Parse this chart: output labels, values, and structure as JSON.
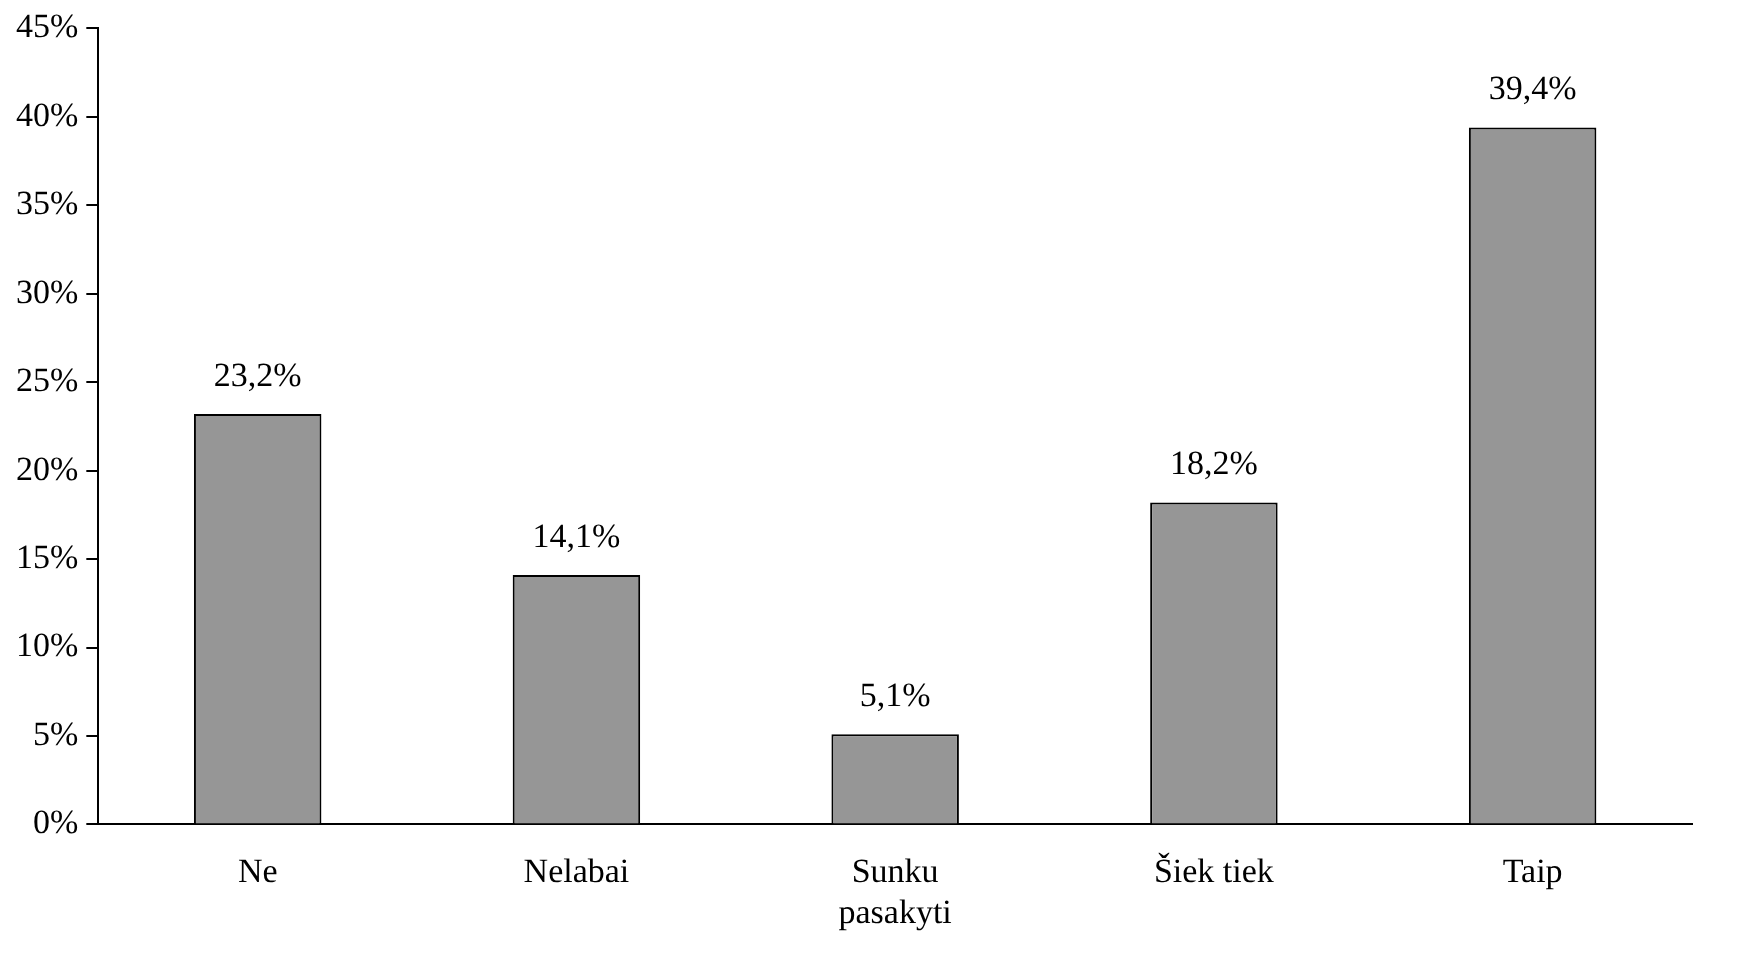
{
  "chart_data": {
    "type": "bar",
    "categories": [
      "Ne",
      "Nelabai",
      "Sunku pasakyti",
      "Šiek tiek",
      "Taip"
    ],
    "values": [
      23.2,
      14.1,
      5.1,
      18.2,
      39.4
    ],
    "value_labels": [
      "23,2%",
      "14,1%",
      "5,1%",
      "18,2%",
      "39,4%"
    ],
    "color": "#969696",
    "ylim": [
      0,
      45
    ],
    "yticks": [
      {
        "value": 0,
        "label": "0%"
      },
      {
        "value": 5,
        "label": "5%"
      },
      {
        "value": 10,
        "label": "10%"
      },
      {
        "value": 15,
        "label": "15%"
      },
      {
        "value": 20,
        "label": "20%"
      },
      {
        "value": 25,
        "label": "25%"
      },
      {
        "value": 30,
        "label": "30%"
      },
      {
        "value": 35,
        "label": "35%"
      },
      {
        "value": 40,
        "label": "40%"
      },
      {
        "value": 45,
        "label": "45%"
      }
    ],
    "grid": false,
    "legend": false
  }
}
